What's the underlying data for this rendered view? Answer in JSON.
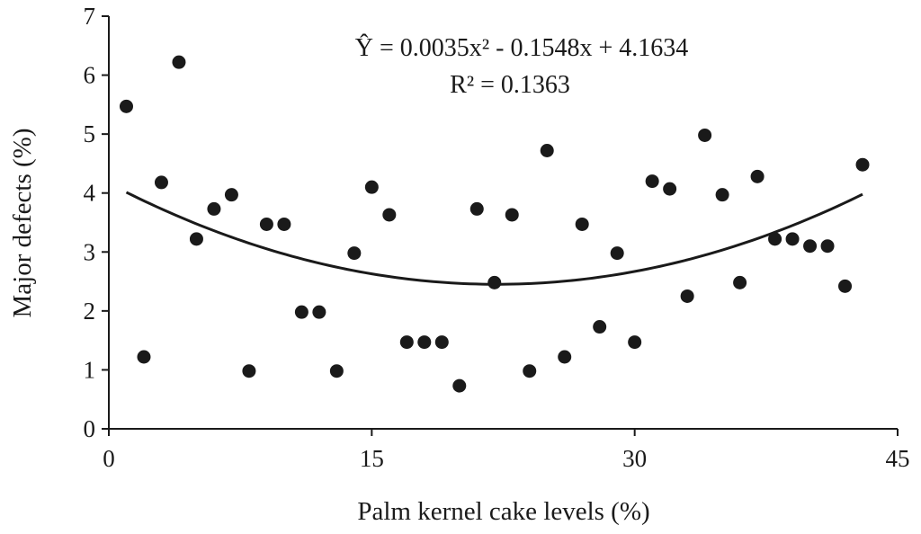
{
  "chart_data": {
    "type": "scatter",
    "title": "",
    "xlabel": "Palm kernel cake levels (%)",
    "ylabel": "Major defects (%)",
    "xlim": [
      0,
      45
    ],
    "ylim": [
      0,
      7
    ],
    "xticks": [
      "0",
      "15",
      "30",
      "45"
    ],
    "yticks": [
      "0",
      "1",
      "2",
      "3",
      "4",
      "5",
      "6",
      "7"
    ],
    "grid": false,
    "legend": "none",
    "equation_text": "Ŷ = 0.0035x² - 0.1548x + 4.1634",
    "r2_text": "R² = 0.1363",
    "trendline": {
      "type": "polynomial",
      "coefficients": [
        0.0035,
        -0.1548,
        4.1634
      ],
      "x_range": [
        1,
        43
      ]
    },
    "colors": {
      "points": "#1a1a1a",
      "line": "#1a1a1a",
      "axis": "#1a1a1a"
    },
    "points": [
      {
        "x": 1,
        "y": 5.47
      },
      {
        "x": 2,
        "y": 1.22
      },
      {
        "x": 3,
        "y": 4.18
      },
      {
        "x": 4,
        "y": 6.22
      },
      {
        "x": 5,
        "y": 3.22
      },
      {
        "x": 6,
        "y": 3.73
      },
      {
        "x": 7,
        "y": 3.97
      },
      {
        "x": 8,
        "y": 0.98
      },
      {
        "x": 9,
        "y": 3.47
      },
      {
        "x": 10,
        "y": 3.47
      },
      {
        "x": 11,
        "y": 1.98
      },
      {
        "x": 12,
        "y": 1.98
      },
      {
        "x": 13,
        "y": 0.98
      },
      {
        "x": 14,
        "y": 2.98
      },
      {
        "x": 15,
        "y": 4.1
      },
      {
        "x": 16,
        "y": 3.63
      },
      {
        "x": 17,
        "y": 1.47
      },
      {
        "x": 18,
        "y": 1.47
      },
      {
        "x": 19,
        "y": 1.47
      },
      {
        "x": 20,
        "y": 0.73
      },
      {
        "x": 21,
        "y": 3.73
      },
      {
        "x": 22,
        "y": 2.48
      },
      {
        "x": 23,
        "y": 3.63
      },
      {
        "x": 24,
        "y": 0.98
      },
      {
        "x": 25,
        "y": 4.72
      },
      {
        "x": 26,
        "y": 1.22
      },
      {
        "x": 27,
        "y": 3.47
      },
      {
        "x": 28,
        "y": 1.73
      },
      {
        "x": 29,
        "y": 2.98
      },
      {
        "x": 30,
        "y": 1.47
      },
      {
        "x": 31,
        "y": 4.2
      },
      {
        "x": 32,
        "y": 4.07
      },
      {
        "x": 33,
        "y": 2.25
      },
      {
        "x": 34,
        "y": 4.98
      },
      {
        "x": 35,
        "y": 3.97
      },
      {
        "x": 36,
        "y": 2.48
      },
      {
        "x": 37,
        "y": 4.28
      },
      {
        "x": 38,
        "y": 3.22
      },
      {
        "x": 39,
        "y": 3.22
      },
      {
        "x": 40,
        "y": 3.1
      },
      {
        "x": 41,
        "y": 3.1
      },
      {
        "x": 42,
        "y": 2.42
      },
      {
        "x": 43,
        "y": 4.48
      }
    ]
  }
}
